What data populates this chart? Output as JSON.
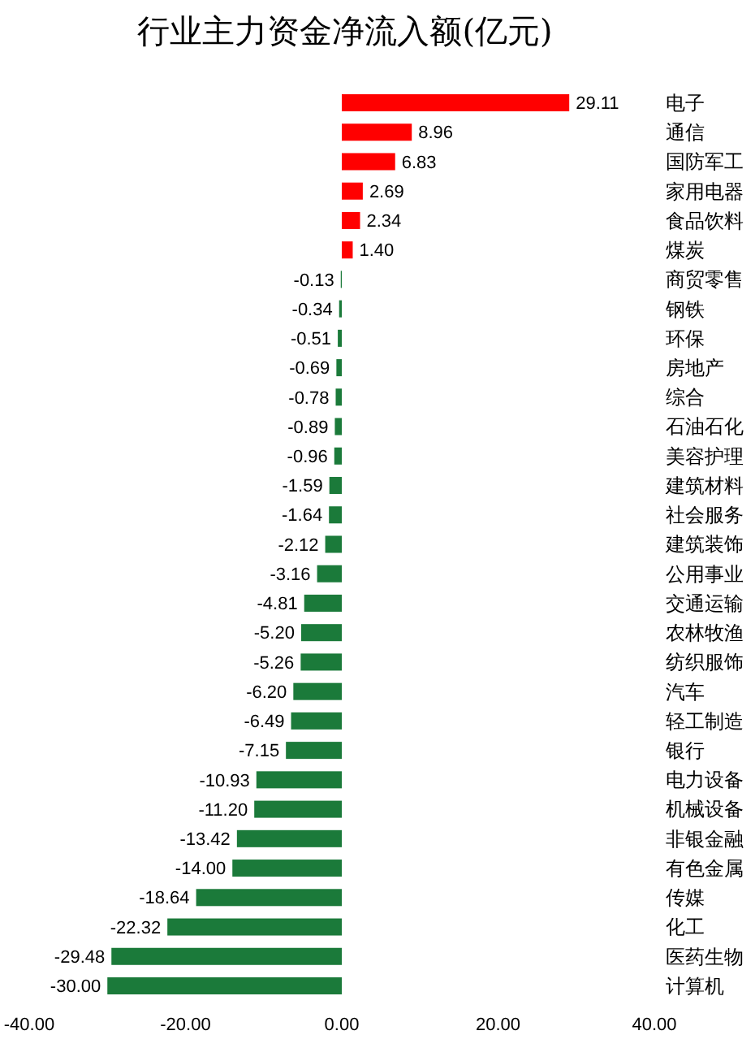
{
  "chart_data": {
    "type": "bar",
    "orientation": "horizontal",
    "title": "行业主力资金净流入额(亿元)",
    "categories": [
      "电子",
      "通信",
      "国防军工",
      "家用电器",
      "食品饮料",
      "煤炭",
      "商贸零售",
      "钢铁",
      "环保",
      "房地产",
      "综合",
      "石油石化",
      "美容护理",
      "建筑材料",
      "社会服务",
      "建筑装饰",
      "公用事业",
      "交通运输",
      "农林牧渔",
      "纺织服饰",
      "汽车",
      "轻工制造",
      "银行",
      "电力设备",
      "机械设备",
      "非银金融",
      "有色金属",
      "传媒",
      "化工",
      "医药生物",
      "计算机"
    ],
    "values": [
      29.11,
      8.96,
      6.83,
      2.69,
      2.34,
      1.4,
      -0.13,
      -0.34,
      -0.51,
      -0.69,
      -0.78,
      -0.89,
      -0.96,
      -1.59,
      -1.64,
      -2.12,
      -3.16,
      -4.81,
      -5.2,
      -5.26,
      -6.2,
      -6.49,
      -7.15,
      -10.93,
      -11.2,
      -13.42,
      -14.0,
      -18.64,
      -22.32,
      -29.48,
      -30.0
    ],
    "value_labels": [
      "29.11",
      "8.96",
      "6.83",
      "2.69",
      "2.34",
      "1.40",
      "-0.13",
      "-0.34",
      "-0.51",
      "-0.69",
      "-0.78",
      "-0.89",
      "-0.96",
      "-1.59",
      "-1.64",
      "-2.12",
      "-3.16",
      "-4.81",
      "-5.20",
      "-5.26",
      "-6.20",
      "-6.49",
      "-7.15",
      "-10.93",
      "-11.20",
      "-13.42",
      "-14.00",
      "-18.64",
      "-22.32",
      "-29.48",
      "-30.00"
    ],
    "colors": [
      "#ff0000",
      "#ff0000",
      "#ff0000",
      "#ff0000",
      "#ff0000",
      "#ff0000",
      "#1b7a3a",
      "#1b7a3a",
      "#1b7a3a",
      "#1b7a3a",
      "#1b7a3a",
      "#1b7a3a",
      "#1b7a3a",
      "#1b7a3a",
      "#1b7a3a",
      "#1b7a3a",
      "#1b7a3a",
      "#1b7a3a",
      "#1b7a3a",
      "#1b7a3a",
      "#1b7a3a",
      "#1b7a3a",
      "#1b7a3a",
      "#1b7a3a",
      "#1b7a3a",
      "#1b7a3a",
      "#1b7a3a",
      "#1b7a3a",
      "#1b7a3a",
      "#1b7a3a",
      "#1b7a3a"
    ],
    "xlim": [
      -40,
      40
    ],
    "xticks": [
      {
        "value": -40,
        "label": "-40.00"
      },
      {
        "value": -20,
        "label": "-20.00"
      },
      {
        "value": 0,
        "label": "0.00"
      },
      {
        "value": 20,
        "label": "20.00"
      },
      {
        "value": 40,
        "label": "40.00"
      }
    ],
    "grid": false
  }
}
